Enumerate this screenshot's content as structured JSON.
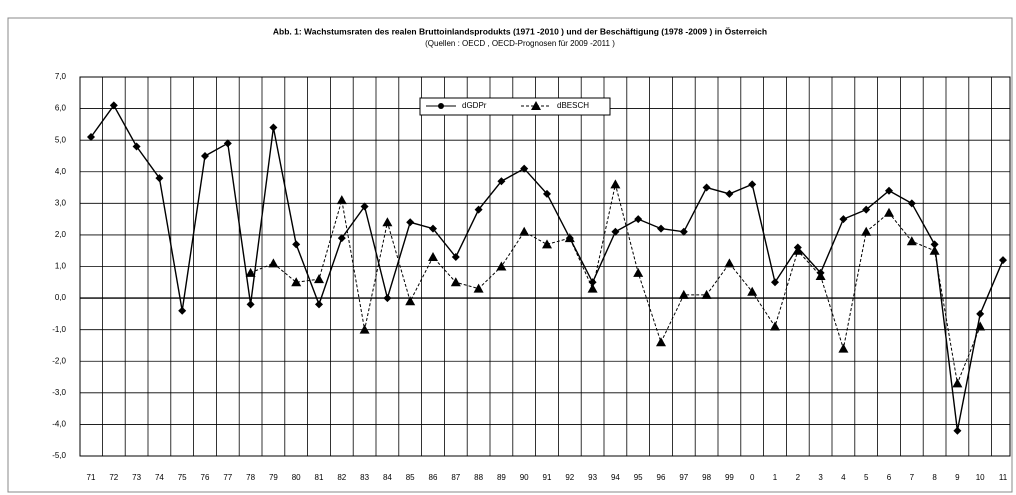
{
  "chart_data": {
    "type": "line",
    "title": "Abb. 1: Wachstumsraten des realen Bruttoinlandsprodukts  (1971 -2010 ) und der Beschäftigung  (1978 -2009 ) in Österreich",
    "subtitle": "(Quellen : OECD , OECD-Prognosen für   2009 -2011 )",
    "categories": [
      "71",
      "72",
      "73",
      "74",
      "75",
      "76",
      "77",
      "78",
      "79",
      "80",
      "81",
      "82",
      "83",
      "84",
      "85",
      "86",
      "87",
      "88",
      "89",
      "90",
      "91",
      "92",
      "93",
      "94",
      "95",
      "96",
      "97",
      "98",
      "99",
      "0",
      "1",
      "2",
      "3",
      "4",
      "5",
      "6",
      "7",
      "8",
      "9",
      "10",
      "11"
    ],
    "series": [
      {
        "name": "dGDPr",
        "color": "#000000",
        "marker": "circle",
        "dashed": false,
        "values": [
          5.1,
          6.1,
          4.8,
          3.8,
          -0.4,
          4.5,
          4.9,
          -0.2,
          5.4,
          1.7,
          -0.2,
          1.9,
          2.9,
          0.0,
          2.4,
          2.2,
          1.3,
          2.8,
          3.7,
          4.1,
          3.3,
          1.9,
          0.5,
          2.1,
          2.5,
          2.2,
          2.1,
          3.5,
          3.3,
          3.6,
          0.5,
          1.6,
          0.8,
          2.5,
          2.8,
          3.4,
          3.0,
          1.7,
          -4.2,
          -0.5,
          1.2
        ]
      },
      {
        "name": "dBESCH",
        "color": "#000000",
        "marker": "triangle",
        "dashed": true,
        "values": [
          null,
          null,
          null,
          null,
          null,
          null,
          null,
          0.8,
          1.1,
          0.5,
          0.6,
          3.1,
          -1.0,
          2.4,
          -0.1,
          1.3,
          0.5,
          0.3,
          1.0,
          2.1,
          1.7,
          1.9,
          0.3,
          3.6,
          0.8,
          -1.4,
          0.1,
          0.1,
          1.1,
          0.2,
          -0.9,
          1.5,
          0.7,
          -1.6,
          2.1,
          2.7,
          1.8,
          1.5,
          -2.7,
          -0.9,
          null
        ]
      }
    ],
    "ylim": [
      -5,
      7
    ],
    "yticks": [
      {
        "value": 7,
        "label": "7,0"
      },
      {
        "value": 6,
        "label": "6,0"
      },
      {
        "value": 5,
        "label": "5,0"
      },
      {
        "value": 4,
        "label": "4,0"
      },
      {
        "value": 3,
        "label": "3,0"
      },
      {
        "value": 2,
        "label": "2,0"
      },
      {
        "value": 1,
        "label": "1,0"
      },
      {
        "value": 0,
        "label": "0,0"
      },
      {
        "value": -1,
        "label": "-1,0"
      },
      {
        "value": -2,
        "label": "-2,0"
      },
      {
        "value": -3,
        "label": "-3,0"
      },
      {
        "value": -4,
        "label": "-4,0"
      },
      {
        "value": -5,
        "label": "-5,0"
      }
    ],
    "grid": true,
    "legend": "top"
  }
}
